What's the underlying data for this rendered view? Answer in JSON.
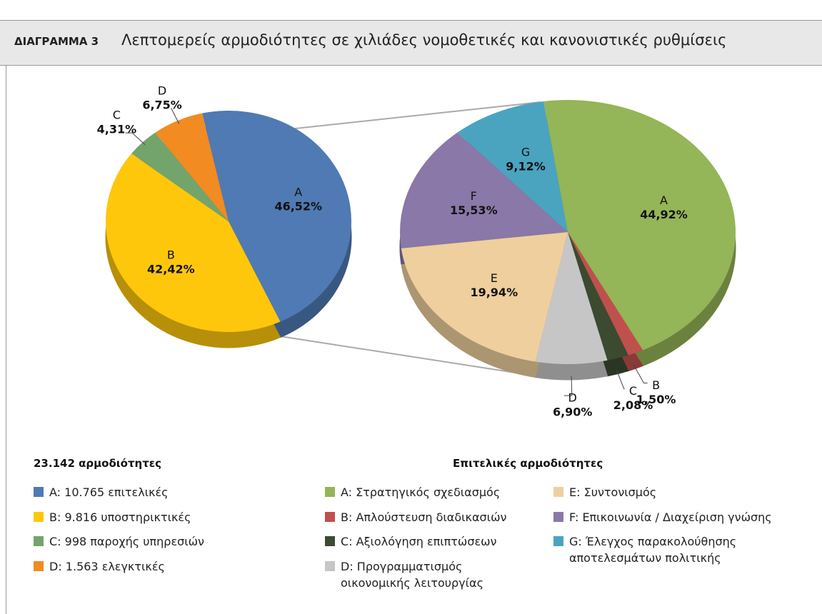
{
  "header": {
    "label": "ΔΙΑΓΡΑΜΜΑ 3",
    "title": "Λεπτομερείς αρμοδιότητες σε χιλιάδες νομοθετικές και κανονιστικές ρυθμίσεις"
  },
  "chart_data": [
    {
      "type": "pie",
      "legend_title": "23.142 αρμοδιότητες",
      "categories": [
        "A",
        "B",
        "C",
        "D"
      ],
      "values": [
        46.52,
        42.42,
        4.31,
        6.75
      ],
      "value_labels": [
        "46,52%",
        "42,42%",
        "4,31%",
        "6,75%"
      ],
      "colors": [
        "#4f7ab3",
        "#fec70b",
        "#72a46c",
        "#f18b22"
      ],
      "legend": [
        "A: 10.765 επιτελικές",
        "B: 9.816 υποστηρικτικές",
        "C: 998 παροχής υπηρεσιών",
        "D: 1.563 ελεγκτικές"
      ]
    },
    {
      "type": "pie",
      "legend_title": "Επιτελικές αρμοδιότητες",
      "categories": [
        "A",
        "B",
        "C",
        "D",
        "E",
        "F",
        "G"
      ],
      "values": [
        44.92,
        1.5,
        2.08,
        6.9,
        19.94,
        15.53,
        9.12
      ],
      "value_labels": [
        "44,92%",
        "1,50%",
        "2,08%",
        "6,90%",
        "19,94%",
        "15,53%",
        "9,12%"
      ],
      "colors": [
        "#94b558",
        "#c0504d",
        "#3c4a30",
        "#c6c6c6",
        "#efcf9d",
        "#8978a8",
        "#4aa4bf"
      ],
      "legend": [
        "A: Στρατηγικός σχεδιασμός",
        "B: Απλούστευση διαδικασιών",
        "C: Αξιολόγηση επιπτώσεων",
        "D: Προγραμματισμός\nοικονομικής λειτουργίας",
        "E: Συντονισμός",
        "F: Επικοινωνία / Διαχείριση γνώσης",
        "G: Έλεγχος παρακολούθησης\nαποτελεσμάτων πολιτικής"
      ]
    }
  ]
}
